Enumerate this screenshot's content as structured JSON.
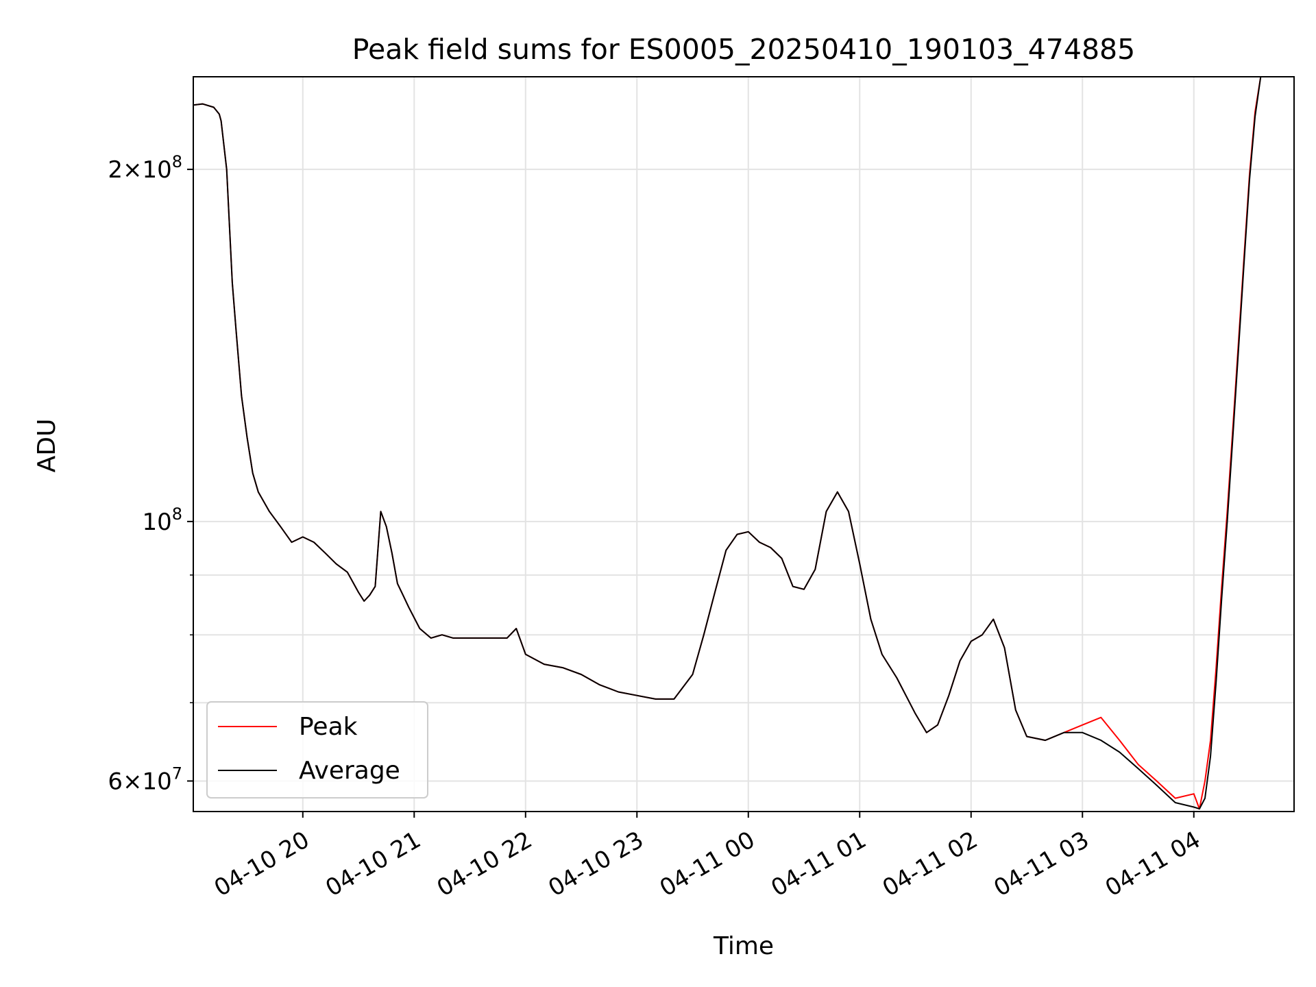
{
  "chart_data": {
    "type": "line",
    "title": "Peak field sums for ES0005_20250410_190103_474885",
    "xlabel": "Time",
    "ylabel": "ADU",
    "y_scale": "log",
    "ylim": [
      56500000,
      240000000
    ],
    "xlim": [
      "2025-04-10 19:01",
      "2025-04-11 04:54"
    ],
    "grid": true,
    "legend_position": "lower-left",
    "x_ticks": [
      {
        "t": "2025-04-10 20:00",
        "label": "04-10 20"
      },
      {
        "t": "2025-04-10 21:00",
        "label": "04-10 21"
      },
      {
        "t": "2025-04-10 22:00",
        "label": "04-10 22"
      },
      {
        "t": "2025-04-10 23:00",
        "label": "04-10 23"
      },
      {
        "t": "2025-04-11 00:00",
        "label": "04-11 00"
      },
      {
        "t": "2025-04-11 01:00",
        "label": "04-11 01"
      },
      {
        "t": "2025-04-11 02:00",
        "label": "04-11 02"
      },
      {
        "t": "2025-04-11 03:00",
        "label": "04-11 03"
      },
      {
        "t": "2025-04-11 04:00",
        "label": "04-11 04"
      }
    ],
    "y_ticks_major": [
      {
        "v": 200000000,
        "mantissa": "2",
        "exp": "8"
      },
      {
        "v": 100000000,
        "mantissa": "",
        "exp": "8"
      },
      {
        "v": 60000000,
        "mantissa": "6",
        "exp": "7"
      }
    ],
    "y_ticks_minor": [
      70000000,
      80000000,
      90000000
    ],
    "x": [
      "2025-04-10 19:01",
      "2025-04-10 19:06",
      "2025-04-10 19:12",
      "2025-04-10 19:15",
      "2025-04-10 19:16",
      "2025-04-10 19:19",
      "2025-04-10 19:22",
      "2025-04-10 19:24",
      "2025-04-10 19:27",
      "2025-04-10 19:30",
      "2025-04-10 19:33",
      "2025-04-10 19:36",
      "2025-04-10 19:42",
      "2025-04-10 19:48",
      "2025-04-10 19:54",
      "2025-04-10 20:00",
      "2025-04-10 20:06",
      "2025-04-10 20:12",
      "2025-04-10 20:18",
      "2025-04-10 20:24",
      "2025-04-10 20:30",
      "2025-04-10 20:33",
      "2025-04-10 20:36",
      "2025-04-10 20:39",
      "2025-04-10 20:42",
      "2025-04-10 20:45",
      "2025-04-10 20:48",
      "2025-04-10 20:51",
      "2025-04-10 20:54",
      "2025-04-10 20:57",
      "2025-04-10 21:03",
      "2025-04-10 21:09",
      "2025-04-10 21:15",
      "2025-04-10 21:21",
      "2025-04-10 21:30",
      "2025-04-10 21:40",
      "2025-04-10 21:50",
      "2025-04-10 21:55",
      "2025-04-10 22:00",
      "2025-04-10 22:10",
      "2025-04-10 22:20",
      "2025-04-10 22:30",
      "2025-04-10 22:40",
      "2025-04-10 22:50",
      "2025-04-10 23:00",
      "2025-04-10 23:10",
      "2025-04-10 23:20",
      "2025-04-10 23:30",
      "2025-04-10 23:36",
      "2025-04-10 23:42",
      "2025-04-10 23:48",
      "2025-04-10 23:54",
      "2025-04-11 00:00",
      "2025-04-11 00:06",
      "2025-04-11 00:12",
      "2025-04-11 00:18",
      "2025-04-11 00:24",
      "2025-04-11 00:30",
      "2025-04-11 00:36",
      "2025-04-11 00:42",
      "2025-04-11 00:48",
      "2025-04-11 00:54",
      "2025-04-11 01:00",
      "2025-04-11 01:06",
      "2025-04-11 01:12",
      "2025-04-11 01:20",
      "2025-04-11 01:30",
      "2025-04-11 01:36",
      "2025-04-11 01:42",
      "2025-04-11 01:48",
      "2025-04-11 01:54",
      "2025-04-11 02:00",
      "2025-04-11 02:06",
      "2025-04-11 02:12",
      "2025-04-11 02:18",
      "2025-04-11 02:24",
      "2025-04-11 02:30",
      "2025-04-11 02:40",
      "2025-04-11 02:50",
      "2025-04-11 03:00",
      "2025-04-11 03:10",
      "2025-04-11 03:20",
      "2025-04-11 03:30",
      "2025-04-11 03:40",
      "2025-04-11 03:50",
      "2025-04-11 04:00",
      "2025-04-11 04:03",
      "2025-04-11 04:06",
      "2025-04-11 04:09",
      "2025-04-11 04:12",
      "2025-04-11 04:15",
      "2025-04-11 04:18",
      "2025-04-11 04:21",
      "2025-04-11 04:24",
      "2025-04-11 04:27",
      "2025-04-11 04:30",
      "2025-04-11 04:33",
      "2025-04-11 04:36",
      "2025-04-11 04:39",
      "2025-04-11 04:42",
      "2025-04-11 04:45",
      "2025-04-11 04:48",
      "2025-04-11 04:51",
      "2025-04-11 04:54"
    ],
    "series": [
      {
        "name": "Peak",
        "color": "#ff0000",
        "values": [
          227000000,
          227500000,
          226000000,
          223000000,
          220000000,
          200000000,
          160000000,
          146000000,
          128000000,
          118000000,
          110000000,
          106000000,
          102000000,
          99000000,
          96000000,
          97000000,
          96000000,
          94000000,
          92000000,
          90500000,
          87000000,
          85500000,
          86500000,
          88000000,
          102000000,
          99000000,
          94000000,
          88500000,
          86500000,
          84500000,
          81000000,
          79500000,
          80000000,
          79500000,
          79500000,
          79500000,
          79500000,
          81000000,
          77000000,
          75500000,
          75000000,
          74000000,
          72500000,
          71500000,
          71000000,
          70500000,
          70500000,
          74000000,
          80000000,
          87000000,
          94500000,
          97500000,
          98000000,
          96000000,
          95000000,
          93000000,
          88000000,
          87500000,
          91000000,
          102000000,
          106000000,
          102000000,
          92000000,
          82500000,
          77000000,
          73500000,
          68500000,
          66000000,
          67000000,
          71000000,
          76000000,
          79000000,
          80000000,
          82500000,
          78000000,
          69000000,
          65500000,
          65000000,
          66000000,
          67000000,
          68000000,
          65000000,
          62000000,
          60000000,
          58000000,
          58500000,
          56800000,
          60000000,
          65000000,
          75000000,
          88000000,
          102000000,
          120000000,
          142000000,
          168000000,
          198000000,
          224000000,
          240000000,
          240000000,
          240000000,
          240000000,
          240000000,
          240000000,
          240000000
        ]
      },
      {
        "name": "Average",
        "color": "#000000",
        "values": [
          227000000,
          227500000,
          226000000,
          223000000,
          220000000,
          200000000,
          160000000,
          146000000,
          128000000,
          118000000,
          110000000,
          106000000,
          102000000,
          99000000,
          96000000,
          97000000,
          96000000,
          94000000,
          92000000,
          90500000,
          87000000,
          85500000,
          86500000,
          88000000,
          102000000,
          99000000,
          94000000,
          88500000,
          86500000,
          84500000,
          81000000,
          79500000,
          80000000,
          79500000,
          79500000,
          79500000,
          79500000,
          81000000,
          77000000,
          75500000,
          75000000,
          74000000,
          72500000,
          71500000,
          71000000,
          70500000,
          70500000,
          74000000,
          80000000,
          87000000,
          94500000,
          97500000,
          98000000,
          96000000,
          95000000,
          93000000,
          88000000,
          87500000,
          91000000,
          102000000,
          106000000,
          102000000,
          92000000,
          82500000,
          77000000,
          73500000,
          68500000,
          66000000,
          67000000,
          71000000,
          76000000,
          79000000,
          80000000,
          82500000,
          78000000,
          69000000,
          65500000,
          65000000,
          66000000,
          66000000,
          65000000,
          63500000,
          61500000,
          59500000,
          57500000,
          57000000,
          56800000,
          58000000,
          63000000,
          73000000,
          86000000,
          100000000,
          118000000,
          140000000,
          166000000,
          196000000,
          222000000,
          240000000,
          240000000,
          240000000,
          240000000,
          240000000,
          240000000,
          240000000
        ]
      }
    ]
  }
}
